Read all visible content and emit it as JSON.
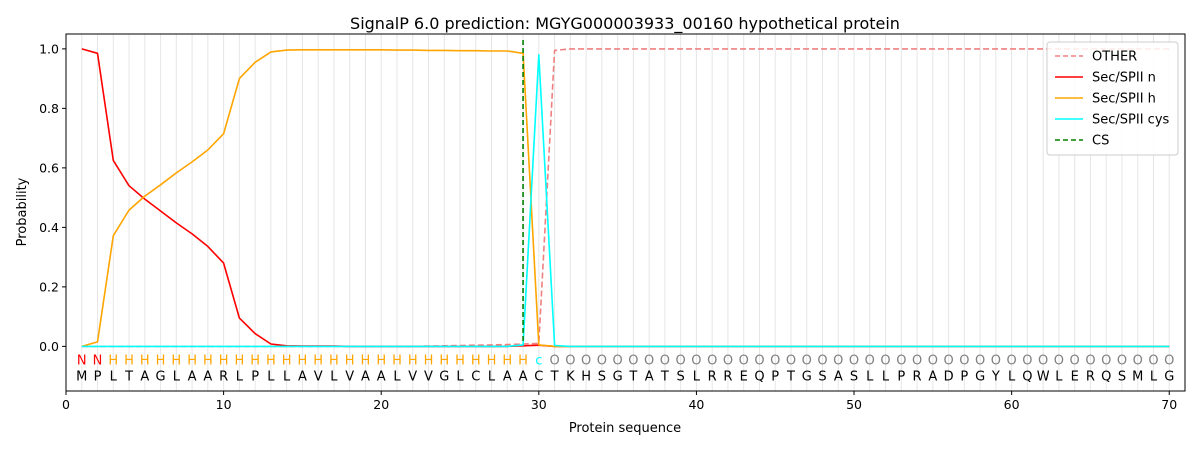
{
  "chart_data": {
    "type": "line",
    "title": "SignalP 6.0 prediction: MGYG000003933_00160 hypothetical protein",
    "xlabel": "Protein sequence",
    "ylabel": "Probability",
    "xlim": [
      0,
      71
    ],
    "ylim": [
      -0.15,
      1.05
    ],
    "xticks": [
      0,
      10,
      20,
      30,
      40,
      50,
      60,
      70
    ],
    "yticks": [
      0.0,
      0.2,
      0.4,
      0.6,
      0.8,
      1.0
    ],
    "ytick_labels": [
      "0.0",
      "0.2",
      "0.4",
      "0.6",
      "0.8",
      "1.0"
    ],
    "grid": "vertical lines at every residue",
    "legend_position": "top-right",
    "x": [
      1,
      2,
      3,
      4,
      5,
      6,
      7,
      8,
      9,
      10,
      11,
      12,
      13,
      14,
      15,
      16,
      17,
      18,
      19,
      20,
      21,
      22,
      23,
      24,
      25,
      26,
      27,
      28,
      29,
      30,
      31,
      32,
      33,
      34,
      35,
      36,
      37,
      38,
      39,
      40,
      41,
      42,
      43,
      44,
      45,
      46,
      47,
      48,
      49,
      50,
      51,
      52,
      53,
      54,
      55,
      56,
      57,
      58,
      59,
      60,
      61,
      62,
      63,
      64,
      65,
      66,
      67,
      68,
      69,
      70
    ],
    "sequence": [
      "M",
      "P",
      "L",
      "T",
      "A",
      "G",
      "L",
      "A",
      "A",
      "R",
      "L",
      "P",
      "L",
      "L",
      "A",
      "V",
      "L",
      "V",
      "A",
      "A",
      "L",
      "V",
      "V",
      "G",
      "L",
      "C",
      "L",
      "A",
      "A",
      "C",
      "T",
      "K",
      "H",
      "S",
      "G",
      "T",
      "A",
      "T",
      "S",
      "L",
      "R",
      "R",
      "E",
      "Q",
      "P",
      "T",
      "G",
      "S",
      "A",
      "S",
      "L",
      "L",
      "P",
      "R",
      "A",
      "D",
      "P",
      "G",
      "Y",
      "L",
      "Q",
      "W",
      "L",
      "E",
      "R",
      "Q",
      "S",
      "M",
      "L",
      "G"
    ],
    "region_labels": [
      "N",
      "N",
      "H",
      "H",
      "H",
      "H",
      "H",
      "H",
      "H",
      "H",
      "H",
      "H",
      "H",
      "H",
      "H",
      "H",
      "H",
      "H",
      "H",
      "H",
      "H",
      "H",
      "H",
      "H",
      "H",
      "H",
      "H",
      "H",
      "H",
      "c",
      "O",
      "O",
      "O",
      "O",
      "O",
      "O",
      "O",
      "O",
      "O",
      "O",
      "O",
      "O",
      "O",
      "O",
      "O",
      "O",
      "O",
      "O",
      "O",
      "O",
      "O",
      "O",
      "O",
      "O",
      "O",
      "O",
      "O",
      "O",
      "O",
      "O",
      "O",
      "O",
      "O",
      "O",
      "O",
      "O",
      "O",
      "O",
      "O",
      "O"
    ],
    "region_colors": {
      "N": "#ff0000",
      "H": "#ffa500",
      "c": "#00ffff",
      "O": "#808080"
    },
    "series": [
      {
        "name": "OTHER",
        "color": "#f08080",
        "dash": "dashed",
        "values": [
          0,
          0,
          0,
          0,
          0,
          0,
          0,
          0,
          0,
          0,
          0,
          0,
          0,
          0,
          0,
          0,
          0,
          0,
          0,
          0,
          0,
          0,
          0.001,
          0.002,
          0.003,
          0.004,
          0.005,
          0.006,
          0.008,
          0.01,
          0.995,
          1,
          1,
          1,
          1,
          1,
          1,
          1,
          1,
          1,
          1,
          1,
          1,
          1,
          1,
          1,
          1,
          1,
          1,
          1,
          1,
          1,
          1,
          1,
          1,
          1,
          1,
          1,
          1,
          1,
          1,
          1,
          1,
          1,
          1,
          1,
          1,
          1,
          1,
          1
        ]
      },
      {
        "name": "Sec/SPII n",
        "color": "#ff0000",
        "dash": "solid",
        "values": [
          1.0,
          0.985,
          0.625,
          0.54,
          0.495,
          0.455,
          0.415,
          0.378,
          0.336,
          0.28,
          0.095,
          0.043,
          0.008,
          0.002,
          0.001,
          0.001,
          0.001,
          0,
          0,
          0,
          0,
          0,
          0,
          0,
          0,
          0,
          0,
          0,
          0.002,
          0.004,
          0,
          0,
          0,
          0,
          0,
          0,
          0,
          0,
          0,
          0,
          0,
          0,
          0,
          0,
          0,
          0,
          0,
          0,
          0,
          0,
          0,
          0,
          0,
          0,
          0,
          0,
          0,
          0,
          0,
          0,
          0,
          0,
          0,
          0,
          0,
          0,
          0,
          0,
          0,
          0
        ]
      },
      {
        "name": "Sec/SPII h",
        "color": "#ffa500",
        "dash": "solid",
        "values": [
          0.0,
          0.015,
          0.372,
          0.458,
          0.505,
          0.543,
          0.583,
          0.62,
          0.66,
          0.715,
          0.9,
          0.955,
          0.99,
          0.996,
          0.997,
          0.997,
          0.997,
          0.997,
          0.997,
          0.997,
          0.996,
          0.996,
          0.995,
          0.995,
          0.994,
          0.994,
          0.993,
          0.993,
          0.985,
          0.005,
          0,
          0,
          0,
          0,
          0,
          0,
          0,
          0,
          0,
          0,
          0,
          0,
          0,
          0,
          0,
          0,
          0,
          0,
          0,
          0,
          0,
          0,
          0,
          0,
          0,
          0,
          0,
          0,
          0,
          0,
          0,
          0,
          0,
          0,
          0,
          0,
          0,
          0,
          0,
          0
        ]
      },
      {
        "name": "Sec/SPII cys",
        "color": "#00ffff",
        "dash": "solid",
        "values": [
          0,
          0,
          0,
          0,
          0,
          0,
          0,
          0,
          0,
          0,
          0,
          0,
          0,
          0,
          0,
          0,
          0,
          0,
          0,
          0,
          0,
          0,
          0,
          0,
          0,
          0,
          0,
          0,
          0.005,
          0.98,
          0.003,
          0,
          0,
          0,
          0,
          0,
          0,
          0,
          0,
          0,
          0,
          0,
          0,
          0,
          0,
          0,
          0,
          0,
          0,
          0,
          0,
          0,
          0,
          0,
          0,
          0,
          0,
          0,
          0,
          0,
          0,
          0,
          0,
          0,
          0,
          0,
          0,
          0,
          0,
          0
        ]
      }
    ],
    "cs": {
      "name": "CS",
      "x": 29,
      "color": "#008000"
    }
  }
}
